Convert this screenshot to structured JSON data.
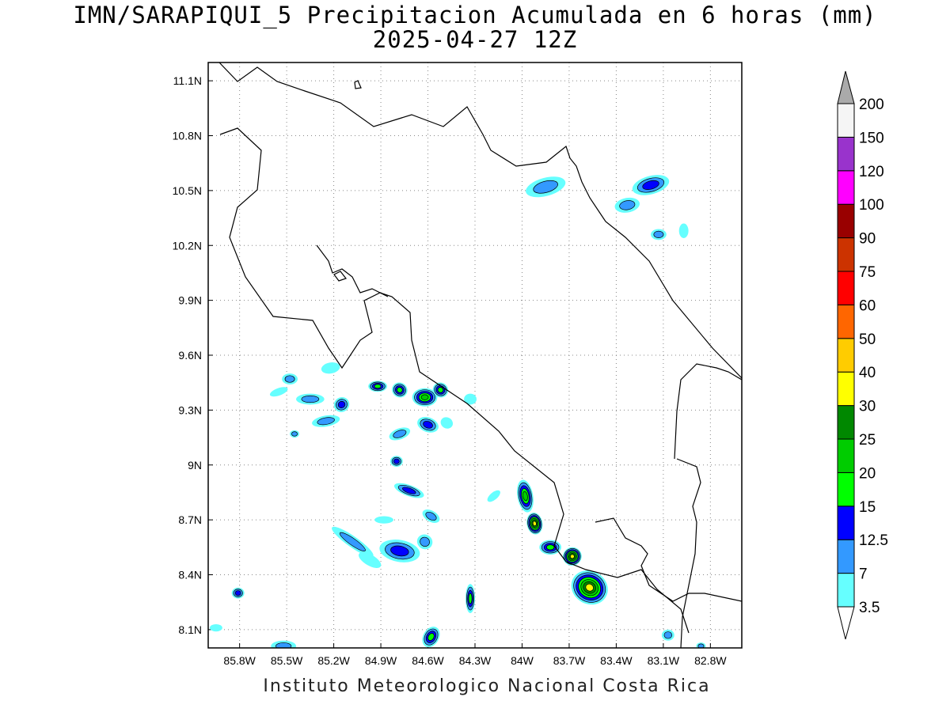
{
  "title": {
    "line1": "IMN/SARAPIQUI_5 Precipitacion Acumulada en 6 horas (mm)",
    "line2": "2025-04-27 12Z"
  },
  "credit": "Instituto Meteorologico Nacional Costa Rica",
  "map": {
    "lon_range": [
      -86.0,
      -82.6
    ],
    "lat_range": [
      8.0,
      11.2
    ],
    "lon_ticks": [
      {
        "value": -85.8,
        "label": "85.8W"
      },
      {
        "value": -85.5,
        "label": "85.5W"
      },
      {
        "value": -85.2,
        "label": "85.2W"
      },
      {
        "value": -84.9,
        "label": "84.9W"
      },
      {
        "value": -84.6,
        "label": "84.6W"
      },
      {
        "value": -84.3,
        "label": "84.3W"
      },
      {
        "value": -84.0,
        "label": "84W"
      },
      {
        "value": -83.7,
        "label": "83.7W"
      },
      {
        "value": -83.4,
        "label": "83.4W"
      },
      {
        "value": -83.1,
        "label": "83.1W"
      },
      {
        "value": -82.8,
        "label": "82.8W"
      }
    ],
    "lat_ticks": [
      {
        "value": 11.1,
        "label": "11.1N"
      },
      {
        "value": 10.8,
        "label": "10.8N"
      },
      {
        "value": 10.5,
        "label": "10.5N"
      },
      {
        "value": 10.2,
        "label": "10.2N"
      },
      {
        "value": 9.9,
        "label": "9.9N"
      },
      {
        "value": 9.6,
        "label": "9.6N"
      },
      {
        "value": 9.3,
        "label": "9.3N"
      },
      {
        "value": 9.0,
        "label": "9N"
      },
      {
        "value": 8.7,
        "label": "8.7N"
      },
      {
        "value": 8.4,
        "label": "8.4N"
      },
      {
        "value": 8.1,
        "label": "8.1N"
      }
    ],
    "grid": true
  },
  "legend": {
    "levels": [
      {
        "label": "3.5",
        "color": "#66ffff"
      },
      {
        "label": "7",
        "color": "#3399ff"
      },
      {
        "label": "12.5",
        "color": "#0000ff"
      },
      {
        "label": "15",
        "color": "#00ff00"
      },
      {
        "label": "20",
        "color": "#00cc00"
      },
      {
        "label": "25",
        "color": "#008800"
      },
      {
        "label": "30",
        "color": "#ffff00"
      },
      {
        "label": "40",
        "color": "#ffcc00"
      },
      {
        "label": "50",
        "color": "#ff6600"
      },
      {
        "label": "60",
        "color": "#ff0000"
      },
      {
        "label": "75",
        "color": "#cc3300"
      },
      {
        "label": "90",
        "color": "#990000"
      },
      {
        "label": "100",
        "color": "#ff00ff"
      },
      {
        "label": "120",
        "color": "#9933cc"
      },
      {
        "label": "150",
        "color": "#f5f5f5"
      },
      {
        "label": "200",
        "color": "#aaaaaa"
      }
    ]
  },
  "precip_cells": [
    {
      "lon": -83.85,
      "lat": 10.52,
      "rx": 0.13,
      "ry": 0.05,
      "rot": -15,
      "level": 1
    },
    {
      "lon": -83.18,
      "lat": 10.53,
      "rx": 0.12,
      "ry": 0.05,
      "rot": -15,
      "level": 2
    },
    {
      "lon": -83.33,
      "lat": 10.42,
      "rx": 0.08,
      "ry": 0.04,
      "rot": -10,
      "level": 1
    },
    {
      "lon": -83.13,
      "lat": 10.26,
      "rx": 0.05,
      "ry": 0.03,
      "rot": 0,
      "level": 1
    },
    {
      "lon": -82.97,
      "lat": 10.28,
      "rx": 0.03,
      "ry": 0.04,
      "rot": 0,
      "level": 0
    },
    {
      "lon": -85.48,
      "lat": 9.47,
      "rx": 0.05,
      "ry": 0.03,
      "rot": 0,
      "level": 1
    },
    {
      "lon": -85.35,
      "lat": 9.36,
      "rx": 0.09,
      "ry": 0.03,
      "rot": 0,
      "level": 1
    },
    {
      "lon": -85.55,
      "lat": 9.4,
      "rx": 0.06,
      "ry": 0.02,
      "rot": -20,
      "level": 0
    },
    {
      "lon": -85.15,
      "lat": 9.33,
      "rx": 0.05,
      "ry": 0.04,
      "rot": -30,
      "level": 2
    },
    {
      "lon": -85.25,
      "lat": 9.24,
      "rx": 0.09,
      "ry": 0.03,
      "rot": -10,
      "level": 1
    },
    {
      "lon": -85.22,
      "lat": 9.53,
      "rx": 0.06,
      "ry": 0.03,
      "rot": -10,
      "level": 0
    },
    {
      "lon": -84.92,
      "lat": 9.43,
      "rx": 0.06,
      "ry": 0.03,
      "rot": 0,
      "level": 3
    },
    {
      "lon": -84.78,
      "lat": 9.41,
      "rx": 0.05,
      "ry": 0.04,
      "rot": 30,
      "level": 3
    },
    {
      "lon": -84.62,
      "lat": 9.37,
      "rx": 0.08,
      "ry": 0.05,
      "rot": 0,
      "level": 4
    },
    {
      "lon": -84.52,
      "lat": 9.41,
      "rx": 0.05,
      "ry": 0.04,
      "rot": 30,
      "level": 3
    },
    {
      "lon": -84.6,
      "lat": 9.22,
      "rx": 0.07,
      "ry": 0.04,
      "rot": 20,
      "level": 2
    },
    {
      "lon": -84.48,
      "lat": 9.23,
      "rx": 0.04,
      "ry": 0.03,
      "rot": 30,
      "level": 0
    },
    {
      "lon": -84.33,
      "lat": 9.36,
      "rx": 0.04,
      "ry": 0.03,
      "rot": 0,
      "level": 0
    },
    {
      "lon": -84.78,
      "lat": 9.17,
      "rx": 0.07,
      "ry": 0.03,
      "rot": -20,
      "level": 1
    },
    {
      "lon": -85.45,
      "lat": 9.17,
      "rx": 0.03,
      "ry": 0.02,
      "rot": 0,
      "level": 1
    },
    {
      "lon": -84.8,
      "lat": 9.02,
      "rx": 0.04,
      "ry": 0.03,
      "rot": 0,
      "level": 2
    },
    {
      "lon": -84.72,
      "lat": 8.86,
      "rx": 0.1,
      "ry": 0.03,
      "rot": 20,
      "level": 2
    },
    {
      "lon": -84.58,
      "lat": 8.72,
      "rx": 0.06,
      "ry": 0.03,
      "rot": 30,
      "level": 1
    },
    {
      "lon": -84.88,
      "lat": 8.7,
      "rx": 0.06,
      "ry": 0.02,
      "rot": 0,
      "level": 0
    },
    {
      "lon": -85.08,
      "lat": 8.58,
      "rx": 0.16,
      "ry": 0.03,
      "rot": 35,
      "level": 1
    },
    {
      "lon": -84.78,
      "lat": 8.53,
      "rx": 0.13,
      "ry": 0.06,
      "rot": 10,
      "level": 2
    },
    {
      "lon": -84.62,
      "lat": 8.58,
      "rx": 0.05,
      "ry": 0.04,
      "rot": 30,
      "level": 1
    },
    {
      "lon": -84.97,
      "lat": 8.48,
      "rx": 0.08,
      "ry": 0.03,
      "rot": 30,
      "level": 0
    },
    {
      "lon": -84.33,
      "lat": 8.27,
      "rx": 0.03,
      "ry": 0.08,
      "rot": 0,
      "level": 3
    },
    {
      "lon": -84.58,
      "lat": 8.06,
      "rx": 0.05,
      "ry": 0.06,
      "rot": 30,
      "level": 3
    },
    {
      "lon": -83.98,
      "lat": 8.83,
      "rx": 0.05,
      "ry": 0.09,
      "rot": -10,
      "level": 4
    },
    {
      "lon": -83.92,
      "lat": 8.68,
      "rx": 0.05,
      "ry": 0.06,
      "rot": -10,
      "level": 6
    },
    {
      "lon": -83.82,
      "lat": 8.55,
      "rx": 0.07,
      "ry": 0.04,
      "rot": 0,
      "level": 3
    },
    {
      "lon": -83.68,
      "lat": 8.5,
      "rx": 0.06,
      "ry": 0.05,
      "rot": -20,
      "level": 6
    },
    {
      "lon": -83.57,
      "lat": 8.33,
      "rx": 0.12,
      "ry": 0.09,
      "rot": 30,
      "level": 6
    },
    {
      "lon": -84.18,
      "lat": 8.83,
      "rx": 0.05,
      "ry": 0.02,
      "rot": -40,
      "level": 0
    },
    {
      "lon": -83.07,
      "lat": 8.07,
      "rx": 0.04,
      "ry": 0.03,
      "rot": 0,
      "level": 1
    },
    {
      "lon": -85.81,
      "lat": 8.3,
      "rx": 0.04,
      "ry": 0.03,
      "rot": 0,
      "level": 2
    },
    {
      "lon": -85.95,
      "lat": 8.11,
      "rx": 0.04,
      "ry": 0.02,
      "rot": 0,
      "level": 0
    },
    {
      "lon": -85.52,
      "lat": 8.01,
      "rx": 0.08,
      "ry": 0.03,
      "rot": 0,
      "level": 1
    },
    {
      "lon": -82.86,
      "lat": 8.01,
      "rx": 0.03,
      "ry": 0.02,
      "rot": 0,
      "level": 1
    }
  ]
}
